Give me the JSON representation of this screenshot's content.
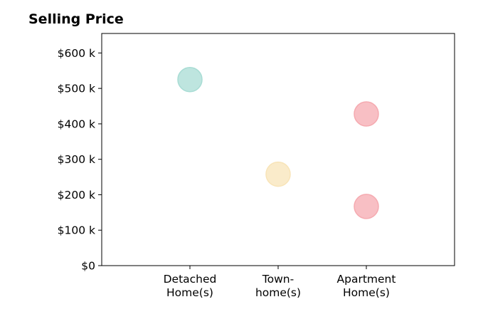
{
  "chart_data": {
    "type": "scatter",
    "title": "Selling Price",
    "xlabel": "",
    "ylabel": "",
    "categories": [
      [
        "Detached",
        "Home(s)"
      ],
      [
        "Town-",
        "home(s)"
      ],
      [
        "Apartment",
        "Home(s)"
      ]
    ],
    "yticks": [
      0,
      100,
      200,
      300,
      400,
      500,
      600
    ],
    "ytick_labels": [
      "$0",
      "$100 k",
      "$200 k",
      "$300 k",
      "$400 k",
      "$500 k",
      "$600 k"
    ],
    "ylim": [
      0,
      655
    ],
    "xlim": [
      -1,
      3
    ],
    "grid": false,
    "points": [
      {
        "category_index": 0,
        "value": 525,
        "color": "#a8dcd4"
      },
      {
        "category_index": 1,
        "value": 258,
        "color": "#f8e4b8"
      },
      {
        "category_index": 2,
        "value": 428,
        "color": "#f5aab0"
      },
      {
        "category_index": 2,
        "value": 167,
        "color": "#f5aab0"
      }
    ]
  }
}
